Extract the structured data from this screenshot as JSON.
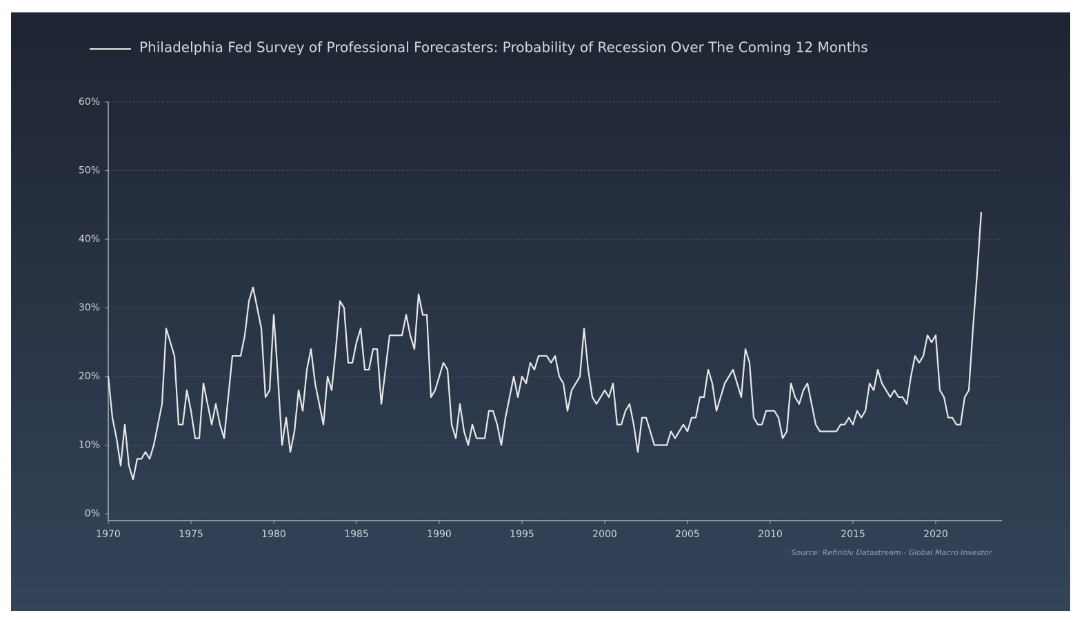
{
  "chart_data": {
    "type": "line",
    "source": "Source: Refinitiv Datastream - Global Macro Investor",
    "x": [
      1970,
      1970.25,
      1970.5,
      1970.75,
      1971,
      1971.25,
      1971.5,
      1971.75,
      1972,
      1972.25,
      1972.5,
      1972.75,
      1973,
      1973.25,
      1973.5,
      1973.75,
      1974,
      1974.25,
      1974.5,
      1974.75,
      1975,
      1975.25,
      1975.5,
      1975.75,
      1976,
      1976.25,
      1976.5,
      1976.75,
      1977,
      1977.25,
      1977.5,
      1977.75,
      1978,
      1978.25,
      1978.5,
      1978.75,
      1979,
      1979.25,
      1979.5,
      1979.75,
      1980,
      1980.25,
      1980.5,
      1980.75,
      1981,
      1981.25,
      1981.5,
      1981.75,
      1982,
      1982.25,
      1982.5,
      1982.75,
      1983,
      1983.25,
      1983.5,
      1983.75,
      1984,
      1984.25,
      1984.5,
      1984.75,
      1985,
      1985.25,
      1985.5,
      1985.75,
      1986,
      1986.25,
      1986.5,
      1986.75,
      1987,
      1987.25,
      1987.5,
      1987.75,
      1988,
      1988.25,
      1988.5,
      1988.75,
      1989,
      1989.25,
      1989.5,
      1989.75,
      1990,
      1990.25,
      1990.5,
      1990.75,
      1991,
      1991.25,
      1991.5,
      1991.75,
      1992,
      1992.25,
      1992.5,
      1992.75,
      1993,
      1993.25,
      1993.5,
      1993.75,
      1994,
      1994.25,
      1994.5,
      1994.75,
      1995,
      1995.25,
      1995.5,
      1995.75,
      1996,
      1996.25,
      1996.5,
      1996.75,
      1997,
      1997.25,
      1997.5,
      1997.75,
      1998,
      1998.25,
      1998.5,
      1998.75,
      1999,
      1999.25,
      1999.5,
      1999.75,
      2000,
      2000.25,
      2000.5,
      2000.75,
      2001,
      2001.25,
      2001.5,
      2001.75,
      2002,
      2002.25,
      2002.5,
      2002.75,
      2003,
      2003.25,
      2003.5,
      2003.75,
      2004,
      2004.25,
      2004.5,
      2004.75,
      2005,
      2005.25,
      2005.5,
      2005.75,
      2006,
      2006.25,
      2006.5,
      2006.75,
      2007,
      2007.25,
      2007.5,
      2007.75,
      2008,
      2008.25,
      2008.5,
      2008.75,
      2009,
      2009.25,
      2009.5,
      2009.75,
      2010,
      2010.25,
      2010.5,
      2010.75,
      2011,
      2011.25,
      2011.5,
      2011.75,
      2012,
      2012.25,
      2012.5,
      2012.75,
      2013,
      2013.25,
      2013.5,
      2013.75,
      2014,
      2014.25,
      2014.5,
      2014.75,
      2015,
      2015.25,
      2015.5,
      2015.75,
      2016,
      2016.25,
      2016.5,
      2016.75,
      2017,
      2017.25,
      2017.5,
      2017.75,
      2018,
      2018.25,
      2018.5,
      2018.75,
      2019,
      2019.25,
      2019.5,
      2019.75,
      2020,
      2020.25,
      2020.5,
      2020.75,
      2021,
      2021.25,
      2021.5,
      2021.75,
      2022,
      2022.25,
      2022.5,
      2022.75
    ],
    "series": [
      {
        "name": "Philadelphia Fed Survey of Professional Forecasters: Probability of Recession Over The Coming 12 Months",
        "color": "#e8e8e8",
        "values": [
          20,
          14,
          11,
          7,
          13,
          7,
          5,
          8,
          8,
          9,
          8,
          10,
          13,
          16,
          27,
          25,
          23,
          13,
          13,
          18,
          15,
          11,
          11,
          19,
          16,
          13,
          16,
          13,
          11,
          17,
          23,
          23,
          23,
          26,
          31,
          33,
          30,
          27,
          17,
          18,
          29,
          20,
          10,
          14,
          9,
          12,
          18,
          15,
          21,
          24,
          19,
          16,
          13,
          20,
          18,
          24,
          31,
          30,
          22,
          22,
          25,
          27,
          21,
          21,
          24,
          24,
          16,
          21,
          26,
          26,
          26,
          26,
          29,
          26,
          24,
          32,
          29,
          29,
          17,
          18,
          20,
          22,
          21,
          13,
          11,
          16,
          12,
          10,
          13,
          11,
          11,
          11,
          15,
          15,
          13,
          10,
          14,
          17,
          20,
          17,
          20,
          19,
          22,
          21,
          23,
          23,
          23,
          22,
          23,
          20,
          19,
          15,
          18,
          19,
          20,
          27,
          21,
          17,
          16,
          17,
          18,
          17,
          19,
          13,
          13,
          15,
          16,
          13,
          9,
          14,
          14,
          12,
          10,
          10,
          10,
          10,
          12,
          11,
          12,
          13,
          12,
          14,
          14,
          17,
          17,
          21,
          19,
          15,
          17,
          19,
          20,
          21,
          19,
          17,
          24,
          22,
          14,
          13,
          13,
          15,
          15,
          15,
          14,
          11,
          12,
          19,
          17,
          16,
          18,
          19,
          16,
          13,
          12,
          12,
          12,
          12,
          12,
          13,
          13,
          14,
          13,
          15,
          14,
          15,
          19,
          18,
          21,
          19,
          18,
          17,
          18,
          17,
          17,
          16,
          20,
          23,
          22,
          23,
          26,
          25,
          26,
          18,
          17,
          14,
          14,
          13,
          13,
          17,
          18,
          27,
          35,
          44
        ]
      }
    ],
    "xlim": [
      1970,
      2024
    ],
    "xticks": [
      1970,
      1975,
      1980,
      1985,
      1990,
      1995,
      2000,
      2005,
      2010,
      2015,
      2020
    ],
    "ylim": [
      -1,
      60
    ],
    "yticks": [
      {
        "value": 0,
        "label": "0%"
      },
      {
        "value": 10,
        "label": "10%"
      },
      {
        "value": 20,
        "label": "20%"
      },
      {
        "value": 30,
        "label": "30%"
      },
      {
        "value": 40,
        "label": "40%"
      },
      {
        "value": 50,
        "label": "50%"
      },
      {
        "value": 60,
        "label": "60%"
      }
    ],
    "grid": true,
    "legend": "top"
  }
}
